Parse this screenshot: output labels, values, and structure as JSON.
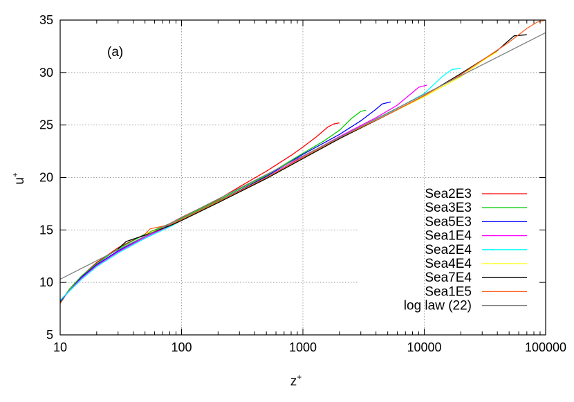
{
  "chart_data": {
    "type": "line",
    "panel_label": "(a)",
    "xlabel": "z",
    "xlabel_sup": "+",
    "ylabel": "u",
    "ylabel_sup": "+",
    "xscale": "log",
    "xlim": [
      10,
      100000
    ],
    "ylim": [
      5,
      35
    ],
    "grid": true,
    "legend_position": "bottom-right",
    "x_ticks": [
      10,
      100,
      1000,
      10000,
      100000
    ],
    "x_tick_labels": [
      "10",
      "100",
      "1000",
      "10000",
      "100000"
    ],
    "y_ticks": [
      5,
      10,
      15,
      20,
      25,
      30,
      35
    ],
    "y_tick_labels": [
      "5",
      "10",
      "15",
      "20",
      "25",
      "30",
      "35"
    ],
    "series": [
      {
        "name": "Sea2E3",
        "color": "#ff0000",
        "points": [
          [
            10,
            8.0
          ],
          [
            12,
            9.4
          ],
          [
            15,
            10.6
          ],
          [
            20,
            11.9
          ],
          [
            30,
            13.3
          ],
          [
            50,
            14.6
          ],
          [
            80,
            15.6
          ],
          [
            100,
            16.2
          ],
          [
            200,
            17.9
          ],
          [
            300,
            19.1
          ],
          [
            500,
            20.6
          ],
          [
            800,
            22.1
          ],
          [
            1000,
            22.9
          ],
          [
            1300,
            23.9
          ],
          [
            1600,
            24.8
          ],
          [
            1800,
            25.1
          ],
          [
            2000,
            25.2
          ]
        ]
      },
      {
        "name": "Sea3E3",
        "color": "#00cc00",
        "points": [
          [
            10,
            8.1
          ],
          [
            12,
            9.4
          ],
          [
            15,
            10.6
          ],
          [
            20,
            11.8
          ],
          [
            30,
            13.2
          ],
          [
            50,
            14.6
          ],
          [
            80,
            15.6
          ],
          [
            100,
            16.1
          ],
          [
            200,
            17.8
          ],
          [
            300,
            18.9
          ],
          [
            500,
            20.2
          ],
          [
            1000,
            22.3
          ],
          [
            1500,
            23.5
          ],
          [
            2000,
            24.5
          ],
          [
            2500,
            25.6
          ],
          [
            3000,
            26.3
          ],
          [
            3300,
            26.4
          ]
        ]
      },
      {
        "name": "Sea5E3",
        "color": "#0000ff",
        "points": [
          [
            10,
            8.2
          ],
          [
            15,
            10.5
          ],
          [
            20,
            11.7
          ],
          [
            30,
            13.0
          ],
          [
            50,
            14.4
          ],
          [
            80,
            15.5
          ],
          [
            100,
            16.0
          ],
          [
            200,
            17.7
          ],
          [
            500,
            20.1
          ],
          [
            1000,
            22.2
          ],
          [
            2000,
            24.1
          ],
          [
            3000,
            25.4
          ],
          [
            4000,
            26.5
          ],
          [
            4500,
            27.0
          ],
          [
            5300,
            27.2
          ]
        ]
      },
      {
        "name": "Sea1E4",
        "color": "#ff00ff",
        "points": [
          [
            10,
            8.3
          ],
          [
            15,
            10.4
          ],
          [
            20,
            11.6
          ],
          [
            30,
            12.9
          ],
          [
            50,
            14.3
          ],
          [
            80,
            15.4
          ],
          [
            100,
            16.0
          ],
          [
            200,
            17.6
          ],
          [
            500,
            20.0
          ],
          [
            1000,
            22.0
          ],
          [
            2000,
            23.9
          ],
          [
            4000,
            25.7
          ],
          [
            6000,
            26.9
          ],
          [
            8000,
            28.1
          ],
          [
            9000,
            28.6
          ],
          [
            10500,
            28.8
          ]
        ]
      },
      {
        "name": "Sea2E4",
        "color": "#00ffff",
        "points": [
          [
            10,
            8.3
          ],
          [
            15,
            10.3
          ],
          [
            20,
            11.5
          ],
          [
            30,
            12.8
          ],
          [
            50,
            14.2
          ],
          [
            80,
            15.3
          ],
          [
            100,
            15.9
          ],
          [
            200,
            17.6
          ],
          [
            500,
            19.9
          ],
          [
            1000,
            21.9
          ],
          [
            2000,
            23.8
          ],
          [
            5000,
            26.1
          ],
          [
            10000,
            28.0
          ],
          [
            14000,
            29.6
          ],
          [
            17000,
            30.3
          ],
          [
            20000,
            30.4
          ]
        ]
      },
      {
        "name": "Sea4E4",
        "color": "#ffff00",
        "points": [
          [
            50,
            14.6
          ],
          [
            80,
            15.4
          ],
          [
            100,
            15.9
          ],
          [
            200,
            17.6
          ],
          [
            500,
            19.9
          ],
          [
            1000,
            21.8
          ],
          [
            2000,
            23.7
          ],
          [
            5000,
            26.0
          ],
          [
            10000,
            27.7
          ],
          [
            20000,
            29.6
          ],
          [
            30000,
            31.1
          ],
          [
            40000,
            32.0
          ]
        ]
      },
      {
        "name": "Sea7E4",
        "color": "#000000",
        "points": [
          [
            30,
            13.2
          ],
          [
            35,
            13.9
          ],
          [
            50,
            14.5
          ],
          [
            80,
            15.4
          ],
          [
            100,
            15.9
          ],
          [
            200,
            17.6
          ],
          [
            500,
            19.9
          ],
          [
            1000,
            21.8
          ],
          [
            2000,
            23.7
          ],
          [
            5000,
            26.0
          ],
          [
            10000,
            27.8
          ],
          [
            20000,
            29.9
          ],
          [
            40000,
            32.1
          ],
          [
            55000,
            33.5
          ],
          [
            70000,
            33.6
          ]
        ]
      },
      {
        "name": "Sea1E5",
        "color": "#ff6020",
        "points": [
          [
            50,
            14.6
          ],
          [
            55,
            15.1
          ],
          [
            80,
            15.5
          ],
          [
            100,
            16.0
          ],
          [
            200,
            17.7
          ],
          [
            500,
            20.0
          ],
          [
            1000,
            21.9
          ],
          [
            2000,
            23.8
          ],
          [
            5000,
            26.0
          ],
          [
            10000,
            27.8
          ],
          [
            20000,
            29.8
          ],
          [
            50000,
            32.9
          ],
          [
            70000,
            34.2
          ],
          [
            85000,
            34.8
          ],
          [
            100000,
            35.0
          ]
        ]
      },
      {
        "name": "log law (22)",
        "color": "#808080",
        "points": [
          [
            10,
            10.3
          ],
          [
            100000,
            33.8
          ]
        ]
      }
    ]
  }
}
